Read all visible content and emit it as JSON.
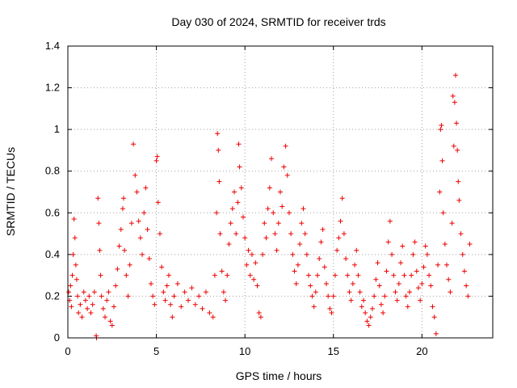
{
  "chart_data": {
    "type": "scatter",
    "title": "Day 030 of 2024, SRMTID for receiver trds",
    "xlabel": "GPS time / hours",
    "ylabel": "SRMTID / TECUs",
    "xlim": [
      0,
      24
    ],
    "ylim": [
      0,
      1.4
    ],
    "x_ticks": [
      0,
      5,
      10,
      15,
      20
    ],
    "x_tick_labels": [
      "0",
      "5",
      "10",
      "15",
      "20"
    ],
    "y_ticks": [
      0,
      0.2,
      0.4,
      0.6,
      0.8,
      1.0,
      1.2,
      1.4
    ],
    "y_tick_labels": [
      "0",
      "0.2",
      "0.4",
      "0.6",
      "0.8",
      "1",
      "1.2",
      "1.4"
    ],
    "grid": true,
    "marker": "plus",
    "series": [
      {
        "name": "SRMTID",
        "color": "#ee0000",
        "points": [
          [
            0.05,
            0.22
          ],
          [
            0.1,
            0.18
          ],
          [
            0.15,
            0.25
          ],
          [
            0.2,
            0.15
          ],
          [
            0.25,
            0.3
          ],
          [
            0.3,
            0.4
          ],
          [
            0.35,
            0.57
          ],
          [
            0.4,
            0.48
          ],
          [
            0.45,
            0.35
          ],
          [
            0.5,
            0.28
          ],
          [
            0.55,
            0.2
          ],
          [
            0.6,
            0.12
          ],
          [
            0.7,
            0.16
          ],
          [
            0.8,
            0.1
          ],
          [
            0.9,
            0.22
          ],
          [
            1.0,
            0.18
          ],
          [
            1.1,
            0.14
          ],
          [
            1.2,
            0.2
          ],
          [
            1.3,
            0.12
          ],
          [
            1.4,
            0.16
          ],
          [
            1.5,
            0.22
          ],
          [
            1.6,
            0.01
          ],
          [
            1.62,
            0.0
          ],
          [
            1.7,
            0.67
          ],
          [
            1.75,
            0.55
          ],
          [
            1.8,
            0.42
          ],
          [
            1.85,
            0.3
          ],
          [
            1.9,
            0.2
          ],
          [
            2.0,
            0.14
          ],
          [
            2.1,
            0.1
          ],
          [
            2.2,
            0.18
          ],
          [
            2.3,
            0.22
          ],
          [
            2.4,
            0.08
          ],
          [
            2.5,
            0.06
          ],
          [
            2.6,
            0.15
          ],
          [
            2.7,
            0.25
          ],
          [
            2.8,
            0.33
          ],
          [
            2.9,
            0.44
          ],
          [
            3.0,
            0.52
          ],
          [
            3.1,
            0.62
          ],
          [
            3.15,
            0.67
          ],
          [
            3.2,
            0.42
          ],
          [
            3.3,
            0.3
          ],
          [
            3.4,
            0.2
          ],
          [
            3.5,
            0.35
          ],
          [
            3.6,
            0.55
          ],
          [
            3.7,
            0.93
          ],
          [
            3.8,
            0.78
          ],
          [
            3.9,
            0.7
          ],
          [
            4.0,
            0.56
          ],
          [
            4.1,
            0.48
          ],
          [
            4.2,
            0.4
          ],
          [
            4.3,
            0.6
          ],
          [
            4.4,
            0.72
          ],
          [
            4.5,
            0.52
          ],
          [
            4.6,
            0.38
          ],
          [
            4.7,
            0.26
          ],
          [
            4.8,
            0.2
          ],
          [
            4.9,
            0.16
          ],
          [
            5.0,
            0.85
          ],
          [
            5.05,
            0.87
          ],
          [
            5.1,
            0.65
          ],
          [
            5.2,
            0.5
          ],
          [
            5.3,
            0.34
          ],
          [
            5.4,
            0.22
          ],
          [
            5.5,
            0.18
          ],
          [
            5.6,
            0.25
          ],
          [
            5.7,
            0.3
          ],
          [
            5.8,
            0.16
          ],
          [
            5.9,
            0.1
          ],
          [
            6.0,
            0.2
          ],
          [
            6.2,
            0.26
          ],
          [
            6.4,
            0.15
          ],
          [
            6.6,
            0.22
          ],
          [
            6.8,
            0.18
          ],
          [
            7.0,
            0.24
          ],
          [
            7.2,
            0.16
          ],
          [
            7.4,
            0.2
          ],
          [
            7.6,
            0.14
          ],
          [
            7.8,
            0.22
          ],
          [
            8.0,
            0.12
          ],
          [
            8.2,
            0.1
          ],
          [
            8.3,
            0.3
          ],
          [
            8.4,
            0.6
          ],
          [
            8.45,
            0.98
          ],
          [
            8.5,
            0.9
          ],
          [
            8.55,
            0.75
          ],
          [
            8.6,
            0.5
          ],
          [
            8.7,
            0.32
          ],
          [
            8.8,
            0.22
          ],
          [
            8.9,
            0.18
          ],
          [
            9.0,
            0.3
          ],
          [
            9.1,
            0.45
          ],
          [
            9.2,
            0.55
          ],
          [
            9.3,
            0.62
          ],
          [
            9.4,
            0.7
          ],
          [
            9.5,
            0.5
          ],
          [
            9.6,
            0.65
          ],
          [
            9.65,
            0.93
          ],
          [
            9.7,
            0.82
          ],
          [
            9.8,
            0.72
          ],
          [
            9.9,
            0.58
          ],
          [
            10.0,
            0.48
          ],
          [
            10.1,
            0.35
          ],
          [
            10.2,
            0.42
          ],
          [
            10.3,
            0.3
          ],
          [
            10.4,
            0.4
          ],
          [
            10.5,
            0.28
          ],
          [
            10.6,
            0.36
          ],
          [
            10.7,
            0.25
          ],
          [
            10.8,
            0.12
          ],
          [
            10.9,
            0.1
          ],
          [
            11.0,
            0.4
          ],
          [
            11.1,
            0.55
          ],
          [
            11.2,
            0.48
          ],
          [
            11.3,
            0.62
          ],
          [
            11.4,
            0.72
          ],
          [
            11.5,
            0.86
          ],
          [
            11.6,
            0.6
          ],
          [
            11.7,
            0.5
          ],
          [
            11.8,
            0.42
          ],
          [
            11.9,
            0.55
          ],
          [
            12.0,
            0.7
          ],
          [
            12.1,
            0.63
          ],
          [
            12.2,
            0.82
          ],
          [
            12.3,
            0.92
          ],
          [
            12.4,
            0.78
          ],
          [
            12.5,
            0.6
          ],
          [
            12.6,
            0.5
          ],
          [
            12.7,
            0.4
          ],
          [
            12.8,
            0.32
          ],
          [
            12.9,
            0.26
          ],
          [
            13.0,
            0.35
          ],
          [
            13.1,
            0.45
          ],
          [
            13.2,
            0.55
          ],
          [
            13.3,
            0.62
          ],
          [
            13.4,
            0.5
          ],
          [
            13.5,
            0.4
          ],
          [
            13.6,
            0.3
          ],
          [
            13.7,
            0.25
          ],
          [
            13.8,
            0.2
          ],
          [
            13.9,
            0.15
          ],
          [
            14.0,
            0.22
          ],
          [
            14.1,
            0.3
          ],
          [
            14.2,
            0.38
          ],
          [
            14.3,
            0.46
          ],
          [
            14.4,
            0.52
          ],
          [
            14.5,
            0.34
          ],
          [
            14.6,
            0.26
          ],
          [
            14.7,
            0.2
          ],
          [
            14.8,
            0.14
          ],
          [
            14.9,
            0.12
          ],
          [
            15.0,
            0.2
          ],
          [
            15.1,
            0.3
          ],
          [
            15.2,
            0.42
          ],
          [
            15.3,
            0.48
          ],
          [
            15.4,
            0.56
          ],
          [
            15.5,
            0.67
          ],
          [
            15.6,
            0.5
          ],
          [
            15.7,
            0.38
          ],
          [
            15.8,
            0.3
          ],
          [
            15.9,
            0.22
          ],
          [
            16.0,
            0.18
          ],
          [
            16.1,
            0.26
          ],
          [
            16.2,
            0.35
          ],
          [
            16.3,
            0.42
          ],
          [
            16.4,
            0.3
          ],
          [
            16.5,
            0.22
          ],
          [
            16.6,
            0.15
          ],
          [
            16.7,
            0.18
          ],
          [
            16.8,
            0.12
          ],
          [
            16.9,
            0.08
          ],
          [
            17.0,
            0.06
          ],
          [
            17.1,
            0.1
          ],
          [
            17.2,
            0.14
          ],
          [
            17.3,
            0.2
          ],
          [
            17.4,
            0.28
          ],
          [
            17.5,
            0.36
          ],
          [
            17.6,
            0.25
          ],
          [
            17.7,
            0.16
          ],
          [
            17.8,
            0.12
          ],
          [
            17.9,
            0.2
          ],
          [
            18.0,
            0.32
          ],
          [
            18.1,
            0.46
          ],
          [
            18.2,
            0.56
          ],
          [
            18.3,
            0.4
          ],
          [
            18.4,
            0.3
          ],
          [
            18.5,
            0.22
          ],
          [
            18.6,
            0.18
          ],
          [
            18.7,
            0.26
          ],
          [
            18.8,
            0.36
          ],
          [
            18.9,
            0.44
          ],
          [
            19.0,
            0.3
          ],
          [
            19.1,
            0.2
          ],
          [
            19.2,
            0.15
          ],
          [
            19.3,
            0.22
          ],
          [
            19.4,
            0.3
          ],
          [
            19.5,
            0.4
          ],
          [
            19.6,
            0.46
          ],
          [
            19.7,
            0.32
          ],
          [
            19.8,
            0.24
          ],
          [
            19.9,
            0.18
          ],
          [
            20.0,
            0.26
          ],
          [
            20.1,
            0.34
          ],
          [
            20.2,
            0.44
          ],
          [
            20.3,
            0.4
          ],
          [
            20.4,
            0.3
          ],
          [
            20.5,
            0.25
          ],
          [
            20.6,
            0.15
          ],
          [
            20.7,
            0.1
          ],
          [
            20.8,
            0.02
          ],
          [
            20.9,
            0.35
          ],
          [
            21.0,
            0.7
          ],
          [
            21.05,
            1.0
          ],
          [
            21.1,
            1.02
          ],
          [
            21.15,
            0.85
          ],
          [
            21.2,
            0.6
          ],
          [
            21.3,
            0.45
          ],
          [
            21.4,
            0.35
          ],
          [
            21.5,
            0.28
          ],
          [
            21.6,
            0.22
          ],
          [
            21.7,
            0.55
          ],
          [
            21.75,
            1.16
          ],
          [
            21.8,
            0.92
          ],
          [
            21.85,
            1.13
          ],
          [
            21.9,
            1.26
          ],
          [
            21.95,
            1.03
          ],
          [
            22.0,
            0.9
          ],
          [
            22.05,
            0.75
          ],
          [
            22.1,
            0.66
          ],
          [
            22.2,
            0.5
          ],
          [
            22.3,
            0.4
          ],
          [
            22.4,
            0.32
          ],
          [
            22.5,
            0.25
          ],
          [
            22.6,
            0.2
          ],
          [
            22.7,
            0.45
          ]
        ]
      }
    ]
  }
}
